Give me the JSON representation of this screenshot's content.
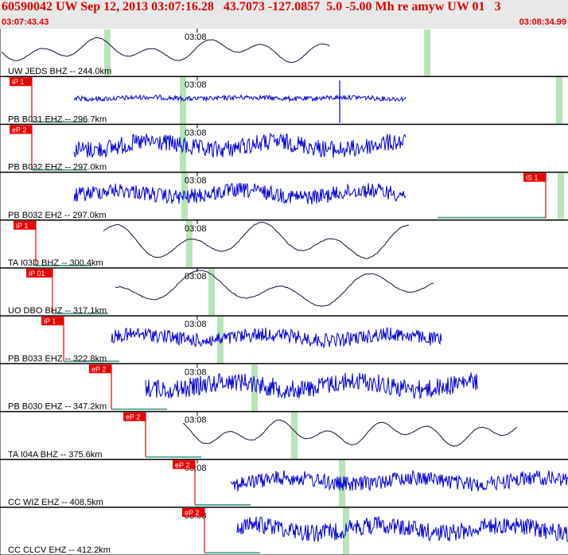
{
  "header": {
    "title": "60590042 UW Sep 12, 2013 03:07:16.28   43.7073 -127.0857  5.0 -5.00 Mh re amyw UW 01   3",
    "start_time": "03:07:43.43",
    "end_time": "03:08:34.99",
    "background": "#e8e8e8",
    "text_color": "#dd0000"
  },
  "tick_label": "03:08",
  "colors": {
    "trace_blue": "#0000dd",
    "trace_dark": "#1a0a3a",
    "marker_green": "#b8e4b8",
    "pick_red": "#ee0000",
    "baseline_teal": "#5aa89a"
  },
  "traces": [
    {
      "label": "UW JEDS BHZ -- 244.0km",
      "pick": "",
      "color": "dark",
      "style": "smooth",
      "amp": 14,
      "freq": 0.09
    },
    {
      "label": "PB B031 EHZ -- 296.7km",
      "pick": "iP 1",
      "pick2": "",
      "color": "blue",
      "style": "noisy_low",
      "amp": 5,
      "freq": 0.6
    },
    {
      "label": "PB B032 EHZ -- 297.0km",
      "pick": "eP 2",
      "color": "blue",
      "style": "noisy",
      "amp": 14,
      "freq": 0.7
    },
    {
      "label": "PB B032 EH2 -- 297.0km",
      "pick": "",
      "pick2": "iS 1",
      "color": "blue",
      "style": "noisy",
      "amp": 12,
      "freq": 0.6
    },
    {
      "label": "TA I03D BHZ -- 300.4km",
      "pick": "iP 1",
      "color": "dark",
      "style": "smooth",
      "amp": 22,
      "freq": 0.07
    },
    {
      "label": "UO DBO BHZ -- 317.1km",
      "pick": "iP 01",
      "color": "dark",
      "style": "smooth",
      "amp": 22,
      "freq": 0.06
    },
    {
      "label": "PB B033 EHZ -- 322.8km",
      "pick": "iP 1",
      "color": "blue",
      "style": "noisy",
      "amp": 11,
      "freq": 0.6
    },
    {
      "label": "PB B030 EHZ -- 347.2km",
      "pick": "eP 2",
      "color": "blue",
      "style": "noisy",
      "amp": 15,
      "freq": 0.8
    },
    {
      "label": "TA I04A BHZ -- 375.6km",
      "pick": "eP 2",
      "color": "dark",
      "style": "smooth",
      "amp": 15,
      "freq": 0.1
    },
    {
      "label": "CC WIZ EHZ -- 408.5km",
      "pick": "eP 2",
      "color": "blue",
      "style": "noisy",
      "amp": 12,
      "freq": 0.35
    },
    {
      "label": "CC CLCV EHZ -- 412.2km",
      "pick": "eP 2",
      "color": "blue",
      "style": "noisy",
      "amp": 14,
      "freq": 0.3
    }
  ]
}
